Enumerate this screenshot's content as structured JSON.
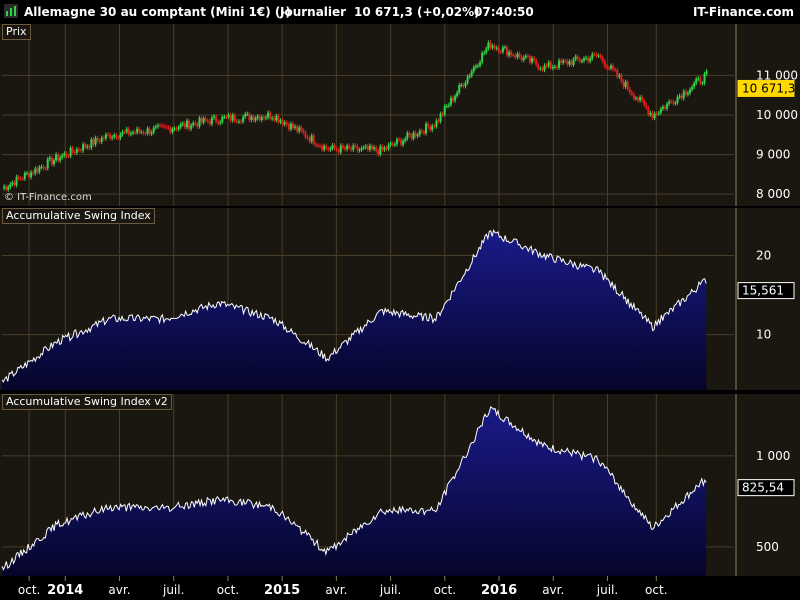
{
  "header": {
    "instrument": "Allemagne 30 au comptant (Mini 1€) (-)",
    "period": "Journalier",
    "quote": "10 671,3 (+0,02%)",
    "time": "07:40:50",
    "brand": "IT-Finance.com"
  },
  "colors": {
    "panel_bg": "#1a1610",
    "grid": "#4a3d2a",
    "up": "#33d34a",
    "down": "#e02020",
    "area_top": "#1a1a8a",
    "area_bottom": "#05052a",
    "badge": "#ffd800"
  },
  "panels": {
    "price": {
      "label": "Prix",
      "watermark": "© IT-Finance.com",
      "last_label": "10 671,3"
    },
    "asi": {
      "label": "Accumulative Swing Index",
      "last_label": "15,561"
    },
    "asi2": {
      "label": "Accumulative Swing Index v2",
      "last_label": "825,54"
    }
  },
  "chart_data": [
    {
      "type": "candlestick",
      "title": "Prix",
      "x_ticks": [
        "oct.",
        "2014",
        "avr.",
        "juil.",
        "oct.",
        "2015",
        "avr.",
        "juil.",
        "oct.",
        "2016",
        "avr.",
        "juil.",
        "oct."
      ],
      "y_ticks": [
        "8 000",
        "9 000",
        "10 000",
        "11 000"
      ],
      "ylim": [
        7700,
        12300
      ],
      "x": [
        0,
        3,
        6,
        9,
        12,
        15,
        18,
        21,
        24,
        27,
        30,
        33,
        36,
        39
      ],
      "close": [
        8150,
        8900,
        9500,
        9650,
        9900,
        10000,
        9150,
        9100,
        9800,
        11800,
        11200,
        11500,
        10000,
        11000
      ],
      "last": 10671.3,
      "grid": true
    },
    {
      "type": "area",
      "title": "Accumulative Swing Index",
      "y_ticks": [
        "10",
        "20"
      ],
      "ylim": [
        3,
        26
      ],
      "x": [
        0,
        3,
        6,
        9,
        12,
        15,
        18,
        21,
        24,
        27,
        30,
        33,
        36,
        39
      ],
      "values": [
        4,
        9,
        12,
        12,
        14,
        12,
        7,
        13,
        12,
        23,
        20,
        18,
        11,
        17
      ],
      "last": 15.561,
      "grid": true
    },
    {
      "type": "area",
      "title": "Accumulative Swing Index v2",
      "y_ticks": [
        "500",
        "1 000"
      ],
      "ylim": [
        340,
        1340
      ],
      "x": [
        0,
        3,
        6,
        9,
        12,
        15,
        18,
        21,
        24,
        27,
        30,
        33,
        36,
        39
      ],
      "values": [
        380,
        620,
        720,
        710,
        760,
        720,
        470,
        700,
        700,
        1260,
        1050,
        980,
        600,
        880
      ],
      "last": 825.54,
      "grid": true
    }
  ]
}
